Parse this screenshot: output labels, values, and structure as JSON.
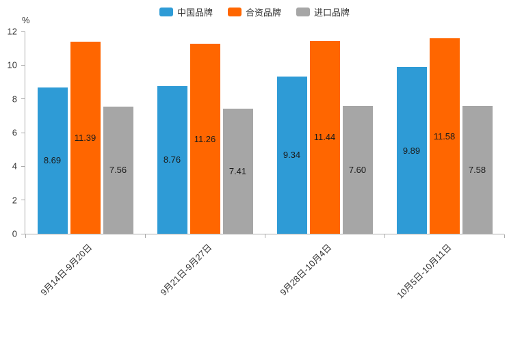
{
  "chart_data": {
    "type": "bar",
    "title": "",
    "unit_label": "%",
    "categories": [
      "9月14日-9月20日",
      "9月21日-9月27日",
      "9月28日-10月4日",
      "10月5日-10月11日"
    ],
    "series": [
      {
        "name": "中国品牌",
        "color": "#2E9BD6",
        "values": [
          8.69,
          8.76,
          9.34,
          9.89
        ]
      },
      {
        "name": "合资品牌",
        "color": "#FF6600",
        "values": [
          11.39,
          11.26,
          11.44,
          11.58
        ]
      },
      {
        "name": "进口品牌",
        "color": "#A6A6A6",
        "values": [
          7.56,
          7.41,
          7.6,
          7.58
        ]
      }
    ],
    "ylim": [
      0,
      12
    ],
    "yticks": [
      0,
      2,
      4,
      6,
      8,
      10,
      12
    ],
    "value_label_decimals": 2,
    "grid": false,
    "legend_position": "top"
  }
}
